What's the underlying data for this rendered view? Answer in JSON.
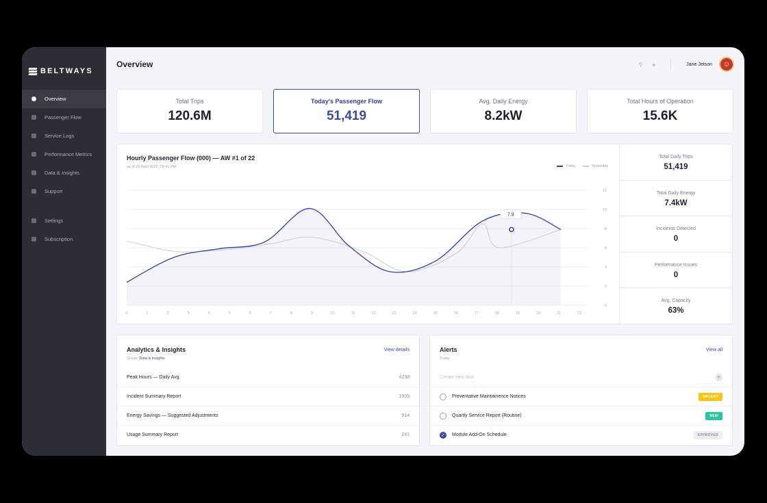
{
  "brand": {
    "name": "BELTWAYS"
  },
  "sidebar": {
    "items": [
      {
        "label": "Overview",
        "icon": "pie-chart-icon"
      },
      {
        "label": "Passenger Flow",
        "icon": "bus-icon"
      },
      {
        "label": "Service Logs",
        "icon": "pin-icon"
      },
      {
        "label": "Performance Metrics",
        "icon": "users-icon"
      },
      {
        "label": "Data & Insights",
        "icon": "person-icon"
      },
      {
        "label": "Support",
        "icon": "document-icon"
      },
      {
        "label": "Settings",
        "icon": "gear-icon"
      },
      {
        "label": "Subscription",
        "icon": "badge-icon"
      }
    ]
  },
  "header": {
    "title": "Overview",
    "user_name": "Jane Jetson"
  },
  "stats": [
    {
      "label": "Total Trips",
      "value": "120.6M"
    },
    {
      "label": "Today's Passenger Flow",
      "value": "51,419"
    },
    {
      "label": "Avg. Daily Energy",
      "value": "8.2kW"
    },
    {
      "label": "Total Hours of Operation",
      "value": "15.6K"
    }
  ],
  "chart": {
    "title": "Hourly Passenger Flow (000) — AW #1 of 22",
    "subtitle": "as of 25 April 2022, 09:41 PM",
    "legend_today": "Today",
    "legend_yesterday": "Yesterday",
    "tooltip": "7.9"
  },
  "chart_data": {
    "type": "line",
    "x": [
      0,
      1,
      2,
      3,
      4,
      5,
      6,
      7,
      8,
      9,
      10,
      11,
      12,
      13,
      14,
      15,
      16,
      17,
      18,
      19,
      20,
      21,
      22
    ],
    "x_tick_labels": [
      "0",
      "1",
      "2",
      "3",
      "4",
      "5",
      "6",
      "7",
      "8",
      "9",
      "10",
      "11",
      "12",
      "13",
      "14",
      "15",
      "16",
      "17",
      "18",
      "19",
      "20",
      "21",
      "22"
    ],
    "ylim": [
      0,
      12
    ],
    "y_ticks": [
      0,
      2,
      4,
      6,
      8,
      10,
      12
    ],
    "grid": true,
    "legend_position": "top-right",
    "series": [
      {
        "name": "Today",
        "color": "#3340a1",
        "points": [
          [
            0,
            2.4
          ],
          [
            2.3,
            5.0
          ],
          [
            4.5,
            5.9
          ],
          [
            6.7,
            6.6
          ],
          [
            8.9,
            10.1
          ],
          [
            10.8,
            6.2
          ],
          [
            12.8,
            3.5
          ],
          [
            15,
            4.6
          ],
          [
            17.3,
            8.8
          ],
          [
            19.4,
            9.6
          ],
          [
            21.1,
            7.9
          ]
        ]
      },
      {
        "name": "Yesterday",
        "color": "#c9ccd4",
        "points": [
          [
            0,
            6.7
          ],
          [
            2.4,
            5.6
          ],
          [
            4.8,
            5.8
          ],
          [
            7.0,
            6.4
          ],
          [
            9.0,
            7.1
          ],
          [
            11.5,
            5.6
          ],
          [
            13.6,
            3.5
          ],
          [
            16.0,
            5.4
          ],
          [
            17.3,
            8.5
          ],
          [
            18.1,
            6.0
          ],
          [
            21.1,
            7.9
          ]
        ]
      }
    ],
    "annotation": {
      "x": 18.7,
      "y": 7.9,
      "label": "7.9"
    }
  },
  "kpis": [
    {
      "label": "Total Daily Trips",
      "value": "51,419"
    },
    {
      "label": "Total Daily Energy",
      "value": "7.4kW"
    },
    {
      "label": "Incidents Detected",
      "value": "0"
    },
    {
      "label": "Performance Issues",
      "value": "0"
    },
    {
      "label": "Avg. Capacity",
      "value": "63%"
    }
  ],
  "analytics": {
    "title": "Analytics & Insights",
    "group_prefix": "Group:",
    "group": "Data & Insights",
    "link": "View details",
    "rows": [
      {
        "label": "Peak Hours — Daily Avg.",
        "value": "4238"
      },
      {
        "label": "Incident Summary Report",
        "value": "1005"
      },
      {
        "label": "Energy Savings — Suggested Adjustments",
        "value": "914"
      },
      {
        "label": "Usage Summary Report",
        "value": "281"
      }
    ]
  },
  "alerts": {
    "title": "Alerts",
    "subtitle": "Today",
    "link": "View all",
    "new_placeholder": "Create new task",
    "tasks": [
      {
        "label": "Preventative Maintainence Notices",
        "badge": "URGENT",
        "badge_color": "#f5c518",
        "done": false
      },
      {
        "label": "Quartly Service Report (Routine)",
        "badge": "NEW",
        "badge_color": "#2ec4a6",
        "done": false
      },
      {
        "label": "Module Add-On Schedule",
        "badge": "APPROVED",
        "badge_color": "#eceef2",
        "done": true
      }
    ]
  }
}
